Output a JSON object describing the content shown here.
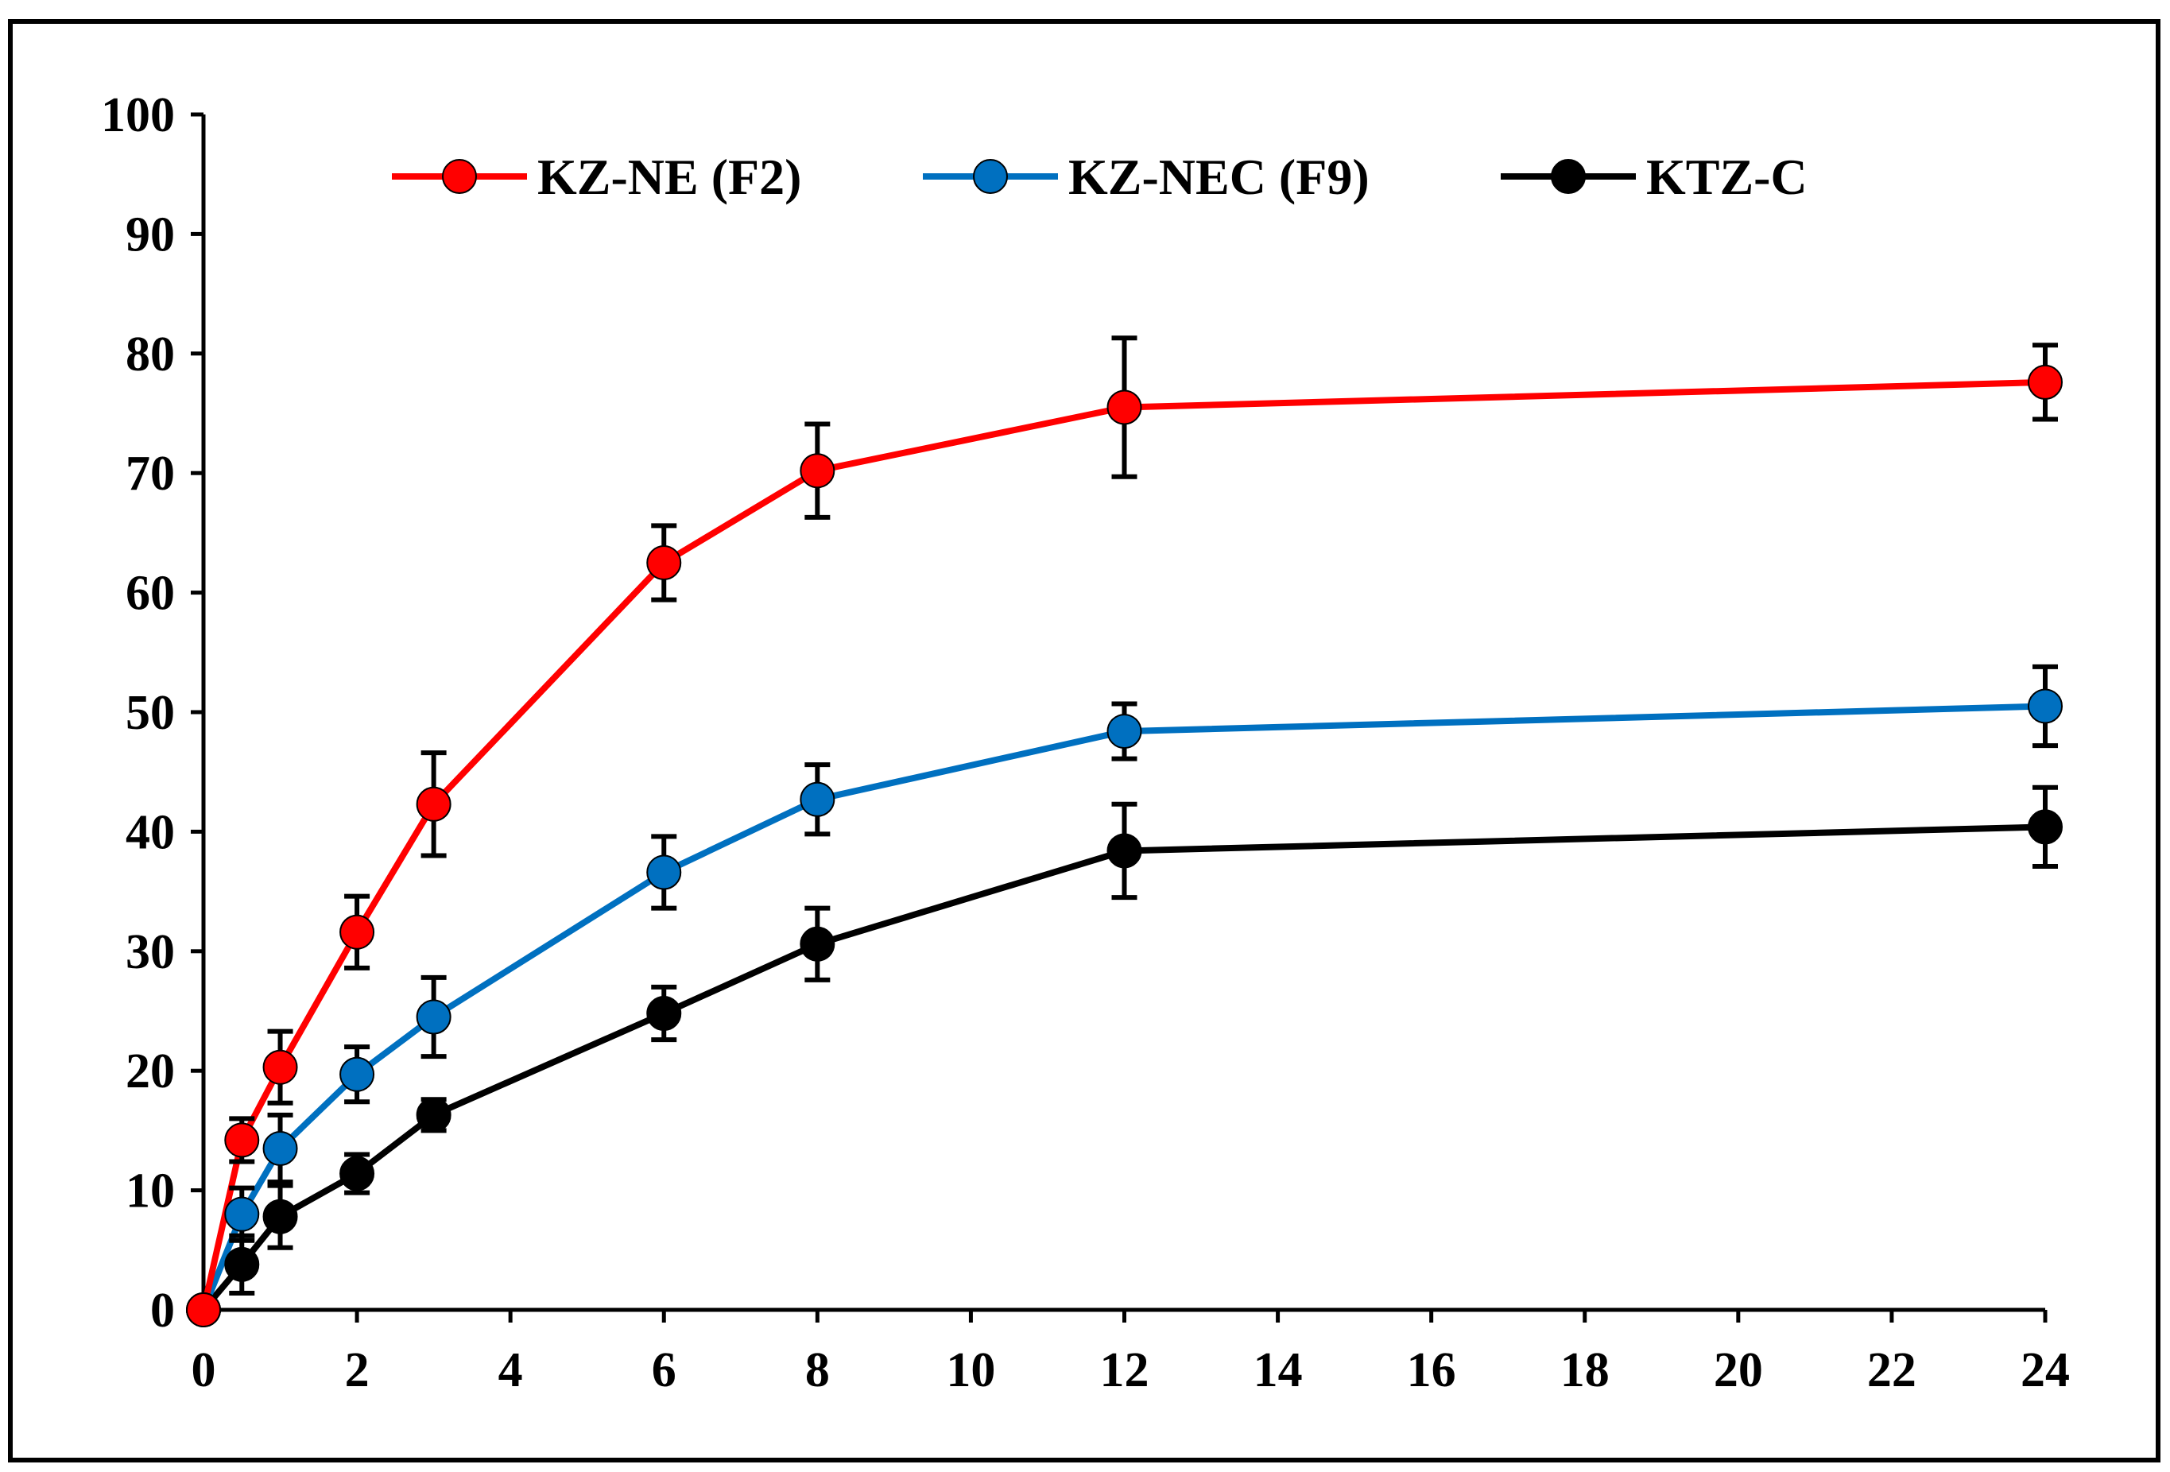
{
  "chart_data": {
    "type": "line",
    "title": "",
    "xlabel": "",
    "ylabel": "",
    "xlim": [
      0,
      24
    ],
    "ylim": [
      0,
      100
    ],
    "x_ticks": [
      0,
      2,
      4,
      6,
      8,
      10,
      12,
      14,
      16,
      18,
      20,
      22,
      24
    ],
    "y_ticks": [
      0,
      10,
      20,
      30,
      40,
      50,
      60,
      70,
      80,
      90,
      100
    ],
    "grid": false,
    "legend_position": "top-center",
    "x": [
      0,
      0.5,
      1,
      2,
      3,
      6,
      8,
      12,
      24
    ],
    "series": [
      {
        "name": "KZ-NE (F2)",
        "color": "#ff0000",
        "values": [
          0,
          14.2,
          20.3,
          31.6,
          42.3,
          62.5,
          70.2,
          75.5,
          77.6
        ],
        "errors": [
          0,
          1.8,
          3.0,
          3.0,
          4.3,
          3.1,
          3.9,
          5.8,
          3.1
        ]
      },
      {
        "name": "KZ-NEC (F9)",
        "color": "#0070c0",
        "values": [
          0,
          8.0,
          13.5,
          19.7,
          24.5,
          36.6,
          42.7,
          48.4,
          50.5
        ],
        "errors": [
          0,
          2.2,
          2.8,
          2.3,
          3.3,
          3.0,
          2.9,
          2.3,
          3.3
        ]
      },
      {
        "name": "KTZ-C",
        "color": "#000000",
        "values": [
          0,
          3.8,
          7.8,
          11.4,
          16.3,
          24.8,
          30.6,
          38.4,
          40.4
        ],
        "errors": [
          0,
          2.4,
          2.6,
          1.6,
          1.3,
          2.2,
          3.0,
          3.9,
          3.3
        ]
      }
    ]
  }
}
